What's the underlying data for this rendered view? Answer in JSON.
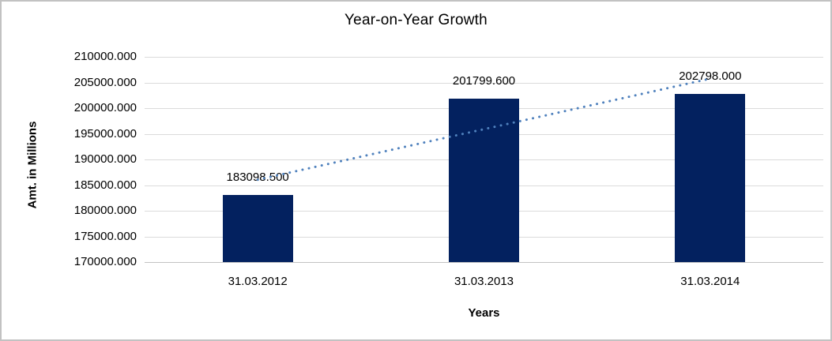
{
  "chart_data": {
    "type": "bar",
    "title": "Year-on-Year Growth",
    "xlabel": "Years",
    "ylabel": "Amt. in Millions",
    "categories": [
      "31.03.2012",
      "31.03.2013",
      "31.03.2014"
    ],
    "values": [
      183098.5,
      201799.6,
      202798.0
    ],
    "value_labels": [
      "183098.500",
      "201799.600",
      "202798.000"
    ],
    "ylim": [
      170000,
      210000
    ],
    "ytick_step": 5000,
    "ytick_labels": [
      "210000.000",
      "205000.000",
      "200000.000",
      "195000.000",
      "190000.000",
      "185000.000",
      "180000.000",
      "175000.000",
      "170000.000"
    ],
    "grid": true,
    "legend": "none",
    "trendline": {
      "type": "linear",
      "style": "dotted",
      "series": "values"
    }
  },
  "colors": {
    "bar": "#03215F",
    "trendline": "#4F81BD",
    "gridline": "#DBDBDB",
    "axis_line": "#C3C3C3",
    "text": "#000000",
    "frame_border": "#C2C2C2",
    "background": "#FFFFFF"
  }
}
